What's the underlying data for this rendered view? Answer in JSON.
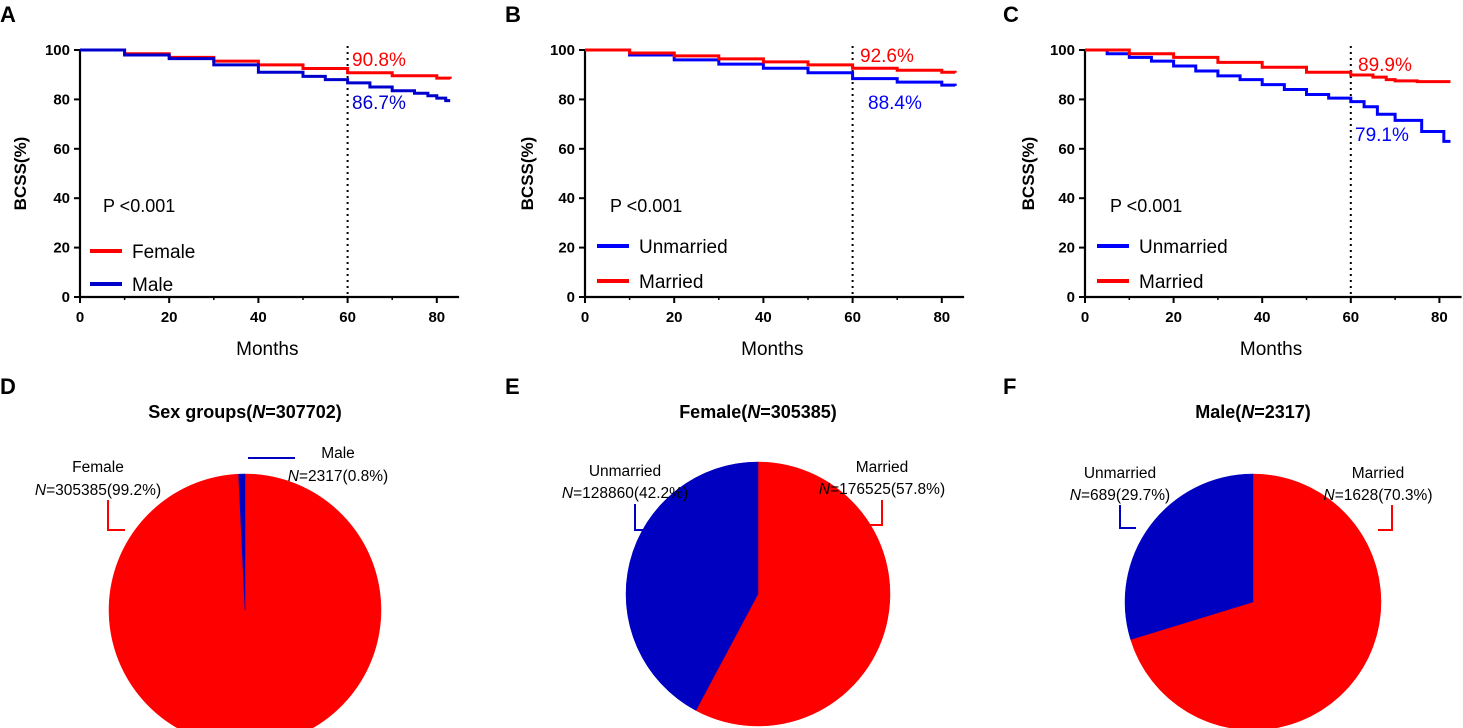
{
  "colors": {
    "red": "#ff0000",
    "blue_A": "#0000cc",
    "blue": "#0000ff",
    "pie_blue": "#0000c0",
    "black": "#000000"
  },
  "chart_data": [
    {
      "type": "line",
      "panel": "A",
      "xlabel": "Months",
      "ylabel": "BCSS(%)",
      "xlim": [
        0,
        85
      ],
      "ylim": [
        0,
        100
      ],
      "xticks": [
        "0",
        "20",
        "40",
        "60",
        "80"
      ],
      "yticks": [
        "0",
        "20",
        "40",
        "60",
        "80",
        "100"
      ],
      "p_value": "P <0.001",
      "reference_x": 60,
      "series": [
        {
          "name": "Female",
          "color": "#ff0000",
          "x": [
            0,
            10,
            20,
            30,
            40,
            50,
            60,
            70,
            80,
            83
          ],
          "y": [
            100,
            98.5,
            97,
            95.5,
            94,
            92.5,
            90.8,
            89.6,
            88.6,
            88.3
          ]
        },
        {
          "name": "Male",
          "color": "#0000cc",
          "x": [
            0,
            10,
            20,
            30,
            40,
            50,
            55,
            60,
            65,
            70,
            75,
            78,
            80,
            82,
            83
          ],
          "y": [
            100,
            98,
            96.5,
            94,
            91,
            89.3,
            88,
            86.7,
            85,
            83.5,
            82.5,
            81.5,
            80.5,
            79.5,
            79.5
          ]
        }
      ],
      "annotations": [
        {
          "text": "90.8%",
          "color": "#ff0000",
          "x": 61,
          "y": 95
        },
        {
          "text": "86.7%",
          "color": "#0000cc",
          "x": 61,
          "y": 80.5
        }
      ]
    },
    {
      "type": "line",
      "panel": "B",
      "xlabel": "Months",
      "ylabel": "BCSS(%)",
      "xlim": [
        0,
        85
      ],
      "ylim": [
        0,
        100
      ],
      "xticks": [
        "0",
        "20",
        "40",
        "60",
        "80"
      ],
      "yticks": [
        "0",
        "20",
        "40",
        "60",
        "80",
        "100"
      ],
      "p_value": "P <0.001",
      "reference_x": 60,
      "series": [
        {
          "name": "Unmarried",
          "color": "#0000ff",
          "x": [
            0,
            10,
            20,
            30,
            40,
            50,
            60,
            70,
            80,
            83
          ],
          "y": [
            100,
            98,
            96,
            94.3,
            92.6,
            90.8,
            88.4,
            87,
            85.8,
            85.5
          ]
        },
        {
          "name": "Married",
          "color": "#ff0000",
          "x": [
            0,
            10,
            20,
            30,
            40,
            50,
            60,
            70,
            80,
            83
          ],
          "y": [
            100,
            98.8,
            97.6,
            96.4,
            95.2,
            94,
            92.6,
            91.8,
            91,
            90.8
          ]
        }
      ],
      "annotations": [
        {
          "text": "92.6%",
          "color": "#ff0000",
          "x": 61,
          "y": 97
        },
        {
          "text": "88.4%",
          "color": "#0000ff",
          "x": 63,
          "y": 81
        }
      ]
    },
    {
      "type": "line",
      "panel": "C",
      "xlabel": "Months",
      "ylabel": "BCSS(%)",
      "xlim": [
        0,
        85
      ],
      "ylim": [
        0,
        100
      ],
      "xticks": [
        "0",
        "20",
        "40",
        "60",
        "80"
      ],
      "yticks": [
        "0",
        "20",
        "40",
        "60",
        "80",
        "100"
      ],
      "p_value": "P <0.001",
      "reference_x": 60,
      "series": [
        {
          "name": "Unmarried",
          "color": "#0000ff",
          "x": [
            0,
            5,
            10,
            15,
            20,
            25,
            30,
            35,
            40,
            45,
            50,
            55,
            60,
            63,
            66,
            70,
            73,
            76,
            79,
            81,
            82.5
          ],
          "y": [
            100,
            98.5,
            97,
            95.5,
            93.5,
            91.5,
            89.5,
            88,
            86,
            84,
            82,
            80.5,
            79.1,
            77,
            74,
            71.5,
            71.5,
            67,
            67,
            63,
            63
          ]
        },
        {
          "name": "Married",
          "color": "#ff0000",
          "x": [
            0,
            10,
            20,
            30,
            40,
            50,
            60,
            65,
            68,
            70,
            75,
            80,
            82.5
          ],
          "y": [
            100,
            98.5,
            97,
            95,
            93,
            91,
            89.9,
            89,
            88,
            87.5,
            87.2,
            87.2,
            87.2
          ]
        }
      ],
      "annotations": [
        {
          "text": "89.9%",
          "color": "#ff0000",
          "x": 62,
          "y": 95
        },
        {
          "text": "79.1%",
          "color": "#0000ff",
          "x": 62,
          "y": 64.5
        }
      ]
    },
    {
      "type": "pie",
      "panel": "D",
      "title_prefix": "Sex groups(",
      "title_n": "N",
      "title_suffix": "=307702)",
      "slices": [
        {
          "name": "Female",
          "count": 305385,
          "percent": 99.2,
          "color": "#ff0000",
          "label_line1": "Female",
          "label_n": "N",
          "label_rest": "=305385(99.2%)"
        },
        {
          "name": "Male",
          "count": 2317,
          "percent": 0.8,
          "color": "#0000c0",
          "label_line1": "Male",
          "label_n": "N",
          "label_rest": "=2317(0.8%)"
        }
      ]
    },
    {
      "type": "pie",
      "panel": "E",
      "title_prefix": "Female(",
      "title_n": "N",
      "title_suffix": "=305385)",
      "slices": [
        {
          "name": "Married",
          "count": 176525,
          "percent": 57.8,
          "color": "#ff0000",
          "label_line1": "Married",
          "label_n": "N",
          "label_rest": "=176525(57.8%)"
        },
        {
          "name": "Unmarried",
          "count": 128860,
          "percent": 42.2,
          "color": "#0000c0",
          "label_line1": "Unmarried",
          "label_n": "N",
          "label_rest": "=128860(42.2%)"
        }
      ]
    },
    {
      "type": "pie",
      "panel": "F",
      "title_prefix": "Male(",
      "title_n": "N",
      "title_suffix": "=2317)",
      "slices": [
        {
          "name": "Married",
          "count": 1628,
          "percent": 70.3,
          "color": "#ff0000",
          "label_line1": "Married",
          "label_n": "N",
          "label_rest": "=1628(70.3%)"
        },
        {
          "name": "Unmarried",
          "count": 689,
          "percent": 29.7,
          "color": "#0000c0",
          "label_line1": "Unmarried",
          "label_n": "N",
          "label_rest": "=689(29.7%)"
        }
      ]
    }
  ]
}
